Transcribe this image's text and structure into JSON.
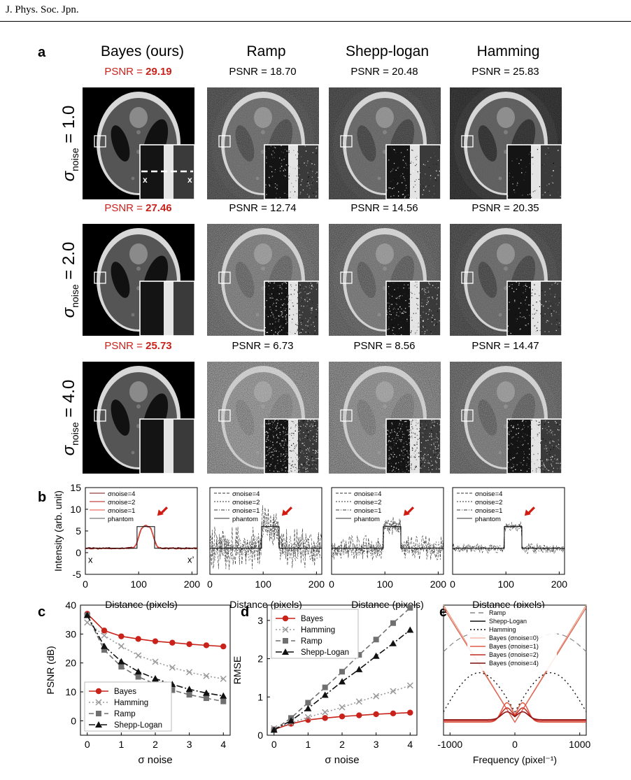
{
  "journal": "J. Phys. Soc. Jpn.",
  "panel_labels": {
    "a": "a",
    "b": "b",
    "c": "c",
    "d": "d",
    "e": "e"
  },
  "columns": [
    "Bayes (ours)",
    "Ramp",
    "Shepp-logan",
    "Hamming"
  ],
  "psnr_prefix": "PSNR = ",
  "rows": [
    {
      "sigma": "1.0",
      "psnr": [
        "29.19",
        "18.70",
        "20.48",
        "25.83"
      ]
    },
    {
      "sigma": "2.0",
      "psnr": [
        "27.46",
        "12.74",
        "14.56",
        "20.35"
      ]
    },
    {
      "sigma": "4.0",
      "psnr": [
        "25.73",
        "6.73",
        "8.56",
        "14.47"
      ]
    }
  ],
  "row_label": {
    "sigma": "σ",
    "sub": "noise",
    "eq": " = "
  },
  "line_markers": {
    "x": "x",
    "xprime": "x’"
  },
  "colors": {
    "bayes": "#c9221b",
    "arrow": "#d11a10",
    "gray": "#6e6e6e"
  },
  "chart_data": [
    {
      "panel": "b",
      "type": "line",
      "ylabel": "Intensity (arb. unit)",
      "xlabel": "Distance (pixels)",
      "xticks": [
        0,
        100,
        200
      ],
      "yticks": [
        15,
        10,
        5,
        0,
        -5
      ],
      "xlim": [
        0,
        210
      ],
      "ylim": [
        -5,
        15
      ],
      "annotations": [
        "x",
        "x’"
      ],
      "legend_placement": "top-left",
      "subplots": [
        {
          "method": "Bayes",
          "legend": [
            "σnoise=4",
            "σnoise=2",
            "σnoise=1",
            "phantom"
          ],
          "noise": 0.2,
          "smooth": true
        },
        {
          "method": "Ramp",
          "legend": [
            "σnoise=4",
            "σnoise=2",
            "σnoise=1",
            "phantom"
          ],
          "noise": 5.0,
          "smooth": false
        },
        {
          "method": "Shepp-logan",
          "legend": [
            "σnoise=4",
            "σnoise=2",
            "σnoise=1",
            "phantom"
          ],
          "noise": 3.0,
          "smooth": false
        },
        {
          "method": "Hamming",
          "legend": [
            "σnoise=4",
            "σnoise=2",
            "σnoise=1",
            "phantom"
          ],
          "noise": 1.2,
          "smooth": false
        }
      ],
      "phantom": {
        "x": [
          0,
          97,
          97,
          130,
          130,
          210
        ],
        "y": [
          1,
          1,
          6,
          6,
          1,
          1
        ]
      }
    },
    {
      "panel": "c",
      "type": "line",
      "ylabel": "PSNR (dB)",
      "xlabel": "σ noise",
      "xlim": [
        -0.2,
        4.2
      ],
      "ylim": [
        -5,
        40
      ],
      "xticks": [
        0,
        1,
        2,
        3,
        4
      ],
      "yticks": [
        0,
        10,
        20,
        30,
        40
      ],
      "legend_placement": "bottom-left",
      "x": [
        0,
        0.5,
        1,
        1.5,
        2,
        2.5,
        3,
        3.5,
        4
      ],
      "series": [
        {
          "name": "Bayes",
          "values": [
            37,
            31.2,
            29.2,
            28.3,
            27.5,
            27,
            26.5,
            26.1,
            25.7
          ]
        },
        {
          "name": "Hamming",
          "values": [
            34,
            29.5,
            25.8,
            22.6,
            20.4,
            18.4,
            16.8,
            15.5,
            14.5
          ]
        },
        {
          "name": "Ramp",
          "values": [
            36.5,
            24.5,
            18.7,
            15.2,
            12.7,
            10.6,
            9,
            7.8,
            6.7
          ]
        },
        {
          "name": "Shepp-Logan",
          "values": [
            36.5,
            25.8,
            20.5,
            17,
            14.6,
            12.6,
            10.9,
            9.6,
            8.6
          ]
        }
      ]
    },
    {
      "panel": "d",
      "type": "line",
      "ylabel": "RMSE",
      "xlabel": "σ noise",
      "xlim": [
        -0.2,
        4.2
      ],
      "ylim": [
        0,
        3.4
      ],
      "xticks": [
        0,
        1,
        2,
        3,
        4
      ],
      "yticks": [
        0,
        1,
        2,
        3
      ],
      "legend_placement": "top-left",
      "x": [
        0,
        0.5,
        1,
        1.5,
        2,
        2.5,
        3,
        3.5,
        4
      ],
      "series": [
        {
          "name": "Bayes",
          "values": [
            0.15,
            0.3,
            0.4,
            0.45,
            0.49,
            0.52,
            0.55,
            0.57,
            0.59
          ]
        },
        {
          "name": "Hamming",
          "values": [
            0.18,
            0.32,
            0.47,
            0.6,
            0.73,
            0.88,
            1.02,
            1.15,
            1.3
          ]
        },
        {
          "name": "Ramp",
          "values": [
            0.14,
            0.45,
            0.85,
            1.25,
            1.66,
            2.1,
            2.5,
            2.93,
            3.33
          ]
        },
        {
          "name": "Shepp-Logan",
          "values": [
            0.14,
            0.38,
            0.7,
            1.05,
            1.4,
            1.72,
            2.07,
            2.4,
            2.75
          ]
        }
      ]
    },
    {
      "panel": "e",
      "type": "line",
      "xlabel": "Frequency (pixel⁻¹)",
      "xticks": [
        -1000,
        0,
        1000
      ],
      "xlim": [
        -1100,
        1100
      ],
      "ylim": [
        0,
        1
      ],
      "legend_placement": "top-center",
      "legend": [
        "Ramp",
        "Shepp-Logan",
        "Hamming",
        "Bayes (σnoise=0)",
        "Bayes (σnoise=1)",
        "Bayes (σnoise=2)",
        "Bayes (σnoise=4)"
      ]
    }
  ]
}
